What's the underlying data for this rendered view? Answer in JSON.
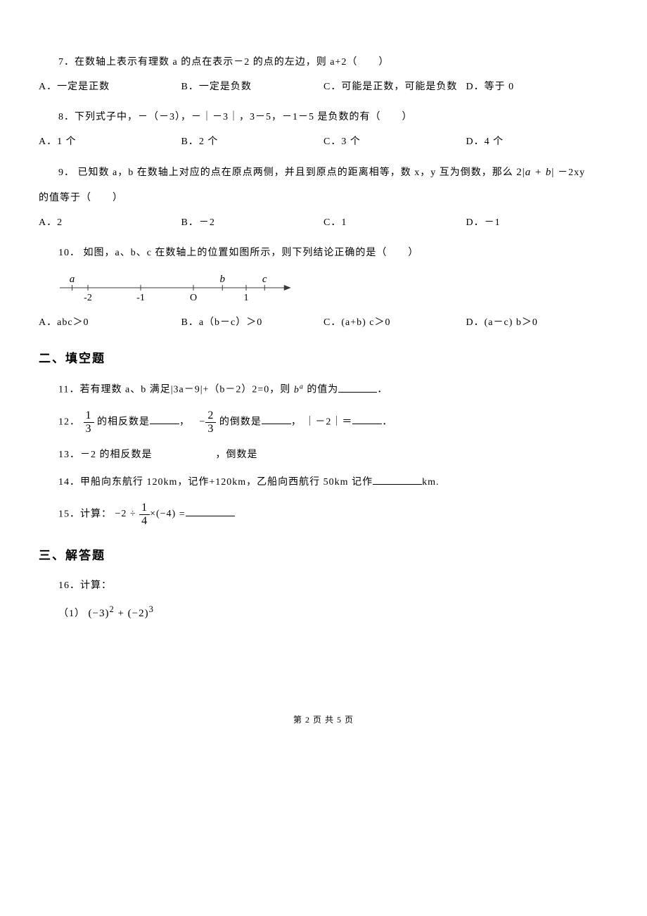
{
  "q7": {
    "text": "7．在数轴上表示有理数 a 的点在表示－2 的点的左边，则 a+2（　　）",
    "opts": {
      "A": "A．一定是正数",
      "B": "B．一定是负数",
      "C": "C．可能是正数，可能是负数",
      "D": "D．等于 0"
    }
  },
  "q8": {
    "text": "8．下列式子中，－（－3），－｜－3｜，3－5，－1－5 是负数的有（　　）",
    "opts": {
      "A": "A．1 个",
      "B": "B．2 个",
      "C": "C．3 个",
      "D": "D．4 个"
    }
  },
  "q9": {
    "pre": "9． 已知数 a，b 在数轴上对应的点在原点两侧，并且到原点的距离相等，数 x，y 互为倒数，那么",
    "expr_left": "2",
    "expr_abs": "a + b",
    "expr_right": "－2xy",
    "post": "的值等于（　　）",
    "opts": {
      "A": "A．2",
      "B": "B．－2",
      "C": "C．1",
      "D": "D．－1"
    }
  },
  "q10": {
    "text": "10． 如图，a、b、c 在数轴上的位置如图所示，则下列结论正确的是（　　）",
    "numberline": {
      "ticks": [
        -2,
        -1,
        0,
        1
      ],
      "labels": [
        "-2",
        "-1",
        "O",
        "1"
      ],
      "letters": [
        {
          "t": "a",
          "x": -2.3
        },
        {
          "t": "b",
          "x": 0.55
        },
        {
          "t": "c",
          "x": 1.35
        }
      ],
      "axis_color": "#3a3a3a",
      "tick_color": "#3a3a3a",
      "font": "italic 15px 'Times New Roman'"
    },
    "opts": {
      "A": "A．abc＞0",
      "B": "B．a（b－c）＞0",
      "C": "C．(a+b) c＞0",
      "D": "D．(a－c) b＞0"
    }
  },
  "sec2": "二、填空题",
  "q11": {
    "pre": "11．若有理数 a、b 满足|3a－9|+（b－2）2=0，则",
    "exp_base": "b",
    "exp_sup": "a",
    "post": "的值为"
  },
  "q12": {
    "label": "12．",
    "f1_num": "1",
    "f1_den": "3",
    "mid1": "的相反数是",
    "comma": "，",
    "f2_neg": "−",
    "f2_num": "2",
    "f2_den": "3",
    "mid2": "的倒数是",
    "abs": "｜－2｜＝"
  },
  "q13": {
    "text": "13．－2 的相反数是　　　　　　，倒数是"
  },
  "q14": {
    "pre": "14．甲船向东航行 120km，记作+120km，乙船向西航行 50km 记作",
    "unit": "km."
  },
  "q15": {
    "label": "15．计算：",
    "neg2": "−2 ÷ ",
    "f_num": "1",
    "f_den": "4",
    "rest": "×(−4)",
    "eq": "="
  },
  "sec3": "三、解答题",
  "q16": {
    "text": "16．计算：",
    "sub_label": "（1）",
    "expr": "(−3)² + (−2)³"
  },
  "footer": "第 2 页 共 5 页"
}
